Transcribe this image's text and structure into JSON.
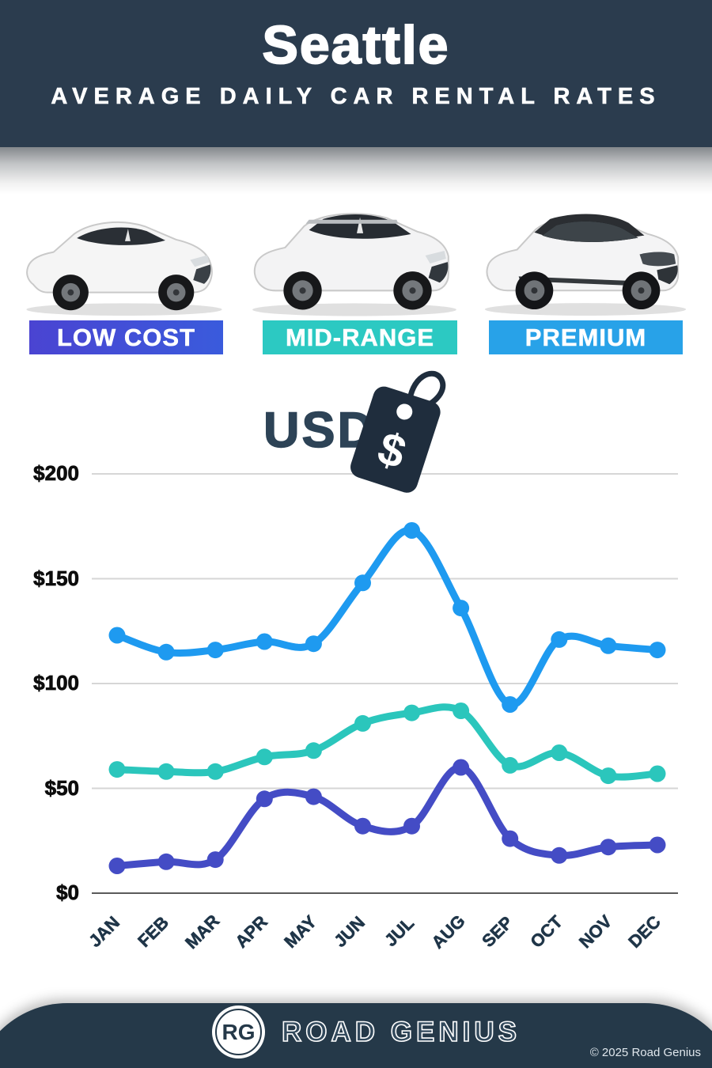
{
  "header": {
    "title": "Seattle",
    "subtitle": "AVERAGE DAILY CAR RENTAL RATES"
  },
  "tiers": [
    {
      "label": "LOW COST",
      "color": "#4a44d2",
      "color2": "#3a5bdc"
    },
    {
      "label": "MID-RANGE",
      "color": "#2cc9c2",
      "color2": ""
    },
    {
      "label": "PREMIUM",
      "color": "#28a2e8",
      "color2": ""
    }
  ],
  "currency": {
    "label": "USD",
    "tag_icon": "price-tag-icon",
    "tag_symbol": "$"
  },
  "chart_data": {
    "type": "line",
    "title": "Seattle average daily car rental rates",
    "units": "USD",
    "categories": [
      "JAN",
      "FEB",
      "MAR",
      "APR",
      "MAY",
      "JUN",
      "JUL",
      "AUG",
      "SEP",
      "OCT",
      "NOV",
      "DEC"
    ],
    "series": [
      {
        "name": "PREMIUM",
        "color": "#1e9af0",
        "values": [
          123,
          115,
          116,
          120,
          119,
          148,
          173,
          136,
          90,
          121,
          118,
          116
        ]
      },
      {
        "name": "MID-RANGE",
        "color": "#2bc6bc",
        "values": [
          59,
          58,
          58,
          65,
          68,
          81,
          86,
          87,
          61,
          67,
          56,
          57
        ]
      },
      {
        "name": "LOW COST",
        "color": "#444cc5",
        "values": [
          13,
          15,
          16,
          45,
          46,
          32,
          32,
          60,
          26,
          18,
          22,
          23
        ]
      }
    ],
    "ylim": [
      0,
      200
    ],
    "yticks": [
      0,
      50,
      100,
      150,
      200
    ],
    "ytick_labels": [
      "$0",
      "$50",
      "$100",
      "$150",
      "$200"
    ],
    "grid": true,
    "legend_position": "banners-above-chart"
  },
  "footer": {
    "logo_monogram": "RG",
    "brand": "ROAD GENIUS",
    "copyright": "© 2025 Road Genius"
  }
}
